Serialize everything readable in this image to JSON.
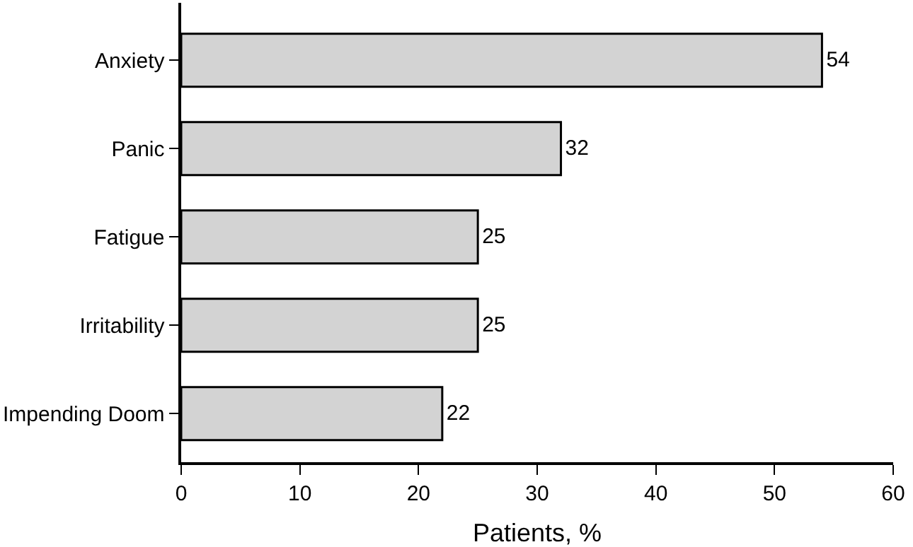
{
  "chart_data": {
    "type": "bar",
    "orientation": "horizontal",
    "categories": [
      "Anxiety",
      "Panic",
      "Fatigue",
      "Irritability",
      "Impending Doom"
    ],
    "values": [
      54,
      32,
      25,
      25,
      22
    ],
    "color": "#d3d3d3",
    "data_labels": true,
    "xlabel": "Patients, %",
    "xlim": [
      0,
      60
    ],
    "xticks": [
      0,
      10,
      20,
      30,
      40,
      50,
      60
    ]
  }
}
